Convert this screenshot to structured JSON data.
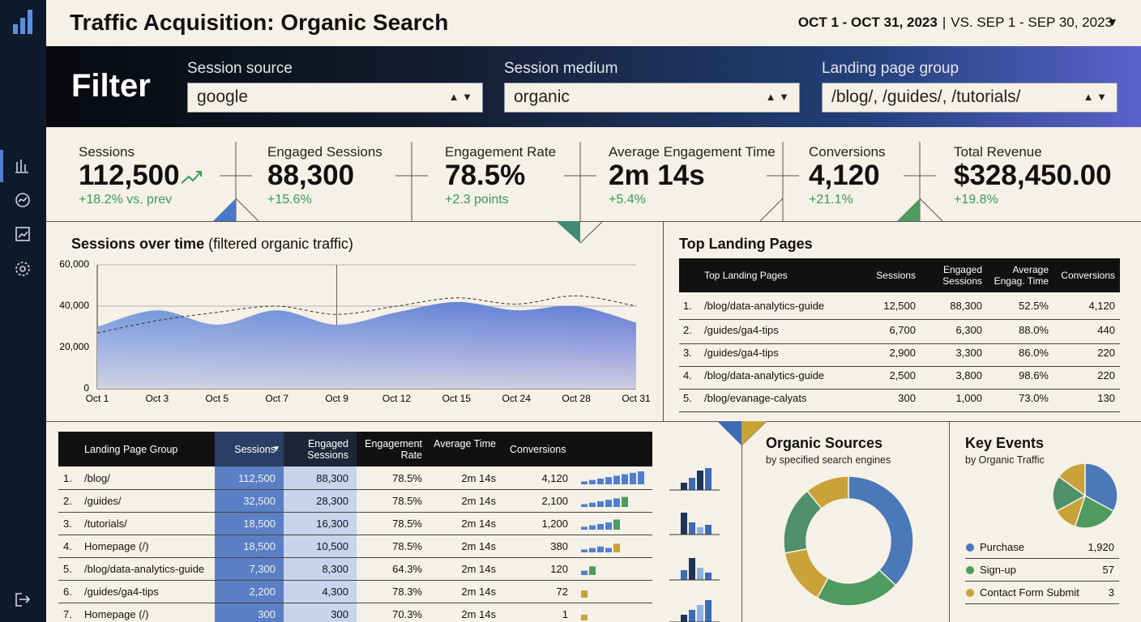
{
  "header": {
    "title": "Traffic Acquisition: Organic Search",
    "date_range": "OCT 1 - OCT 31, 2023",
    "compare_range": "VS. SEP 1 - SEP 30, 2023"
  },
  "filter": {
    "title": "Filter",
    "fields": [
      {
        "label": "Session source",
        "value": "google"
      },
      {
        "label": "Session medium",
        "value": "organic"
      },
      {
        "label": "Landing page group",
        "value": "/blog/, /guides/, /tutorials/"
      }
    ]
  },
  "kpis": [
    {
      "label": "Sessions",
      "value": "112,500",
      "change": "+18.2% vs. prev"
    },
    {
      "label": "Engaged Sessions",
      "value": "88,300",
      "change": "+15.6%"
    },
    {
      "label": "Engagement Rate",
      "value": "78.5%",
      "change": "+2.3 points"
    },
    {
      "label": "Average Engagement Time",
      "value": "2m 14s",
      "change": "+5.4%"
    },
    {
      "label": "Conversions",
      "value": "4,120",
      "change": "+21.1%"
    },
    {
      "label": "Total Revenue",
      "value": "$328,450.00",
      "change": "+19.8%"
    }
  ],
  "sessions_chart": {
    "type": "area",
    "title": "Sessions over time",
    "subtitle": "(filtered organic traffic)",
    "categories": [
      "Oct 1",
      "Oct 3",
      "Oct 5",
      "Oct 7",
      "Oct 9",
      "Oct 12",
      "Oct 15",
      "Oct 24",
      "Oct 28",
      "Oct 31"
    ],
    "series": [
      {
        "color": "#4f7fd0",
        "style": "area",
        "values": [
          30000,
          38000,
          31000,
          38000,
          31000,
          37000,
          42000,
          38000,
          40000,
          32000
        ]
      },
      {
        "color": "#333333",
        "style": "dashed",
        "values": [
          27000,
          33000,
          37000,
          40000,
          36000,
          40000,
          44000,
          41000,
          45000,
          40000
        ]
      }
    ],
    "ylim": [
      0,
      60000
    ],
    "yticks": [
      0,
      {
        "value": 20000,
        "label": "20,000"
      },
      {
        "value": 40000,
        "label": "40,000"
      },
      {
        "value": 60000,
        "label": "60,000"
      }
    ],
    "grid": true
  },
  "top_landing_pages": {
    "title": "Top Landing Pages",
    "columns": [
      "Top Landing Pages",
      "Sessions",
      "Engaged Sessions",
      "Average Engag. Time",
      "Conversions"
    ],
    "rows": [
      [
        "1.",
        "/blog/data-analytics-guide",
        "12,500",
        "88,300",
        "52.5%",
        "4,120"
      ],
      [
        "2.",
        "/guides/ga4-tips",
        "6,700",
        "6,300",
        "88.0%",
        "440"
      ],
      [
        "3.",
        "/guides/ga4-tips",
        "2,900",
        "3,300",
        "86.0%",
        "220"
      ],
      [
        "4.",
        "/blog/data-analytics-guide",
        "2,500",
        "3,800",
        "98.6%",
        "220"
      ],
      [
        "5.",
        "/blog/evanage-calyats",
        "300",
        "1,000",
        "73.0%",
        "130"
      ]
    ]
  },
  "landing_group_table": {
    "columns": [
      "Landing Page Group",
      "Sessions",
      "Engaged Sessions",
      "Engagement Rate",
      "Average Time",
      "Conversions"
    ],
    "rows": [
      {
        "cells": [
          "1.",
          "/blog/",
          "112,500",
          "88,300",
          "78.5%",
          "2m 14s",
          "4,120"
        ],
        "trend": [
          2,
          3,
          4,
          5,
          6,
          7,
          8,
          9
        ],
        "trend_color": "#4f7fd0"
      },
      {
        "cells": [
          "2.",
          "/guides/",
          "32,500",
          "28,300",
          "78.5%",
          "2m 14s",
          "2,100"
        ],
        "trend": [
          2,
          3,
          4,
          5,
          6,
          7
        ],
        "trend_color": "#4f9a5e"
      },
      {
        "cells": [
          "3.",
          "/tutorials/",
          "18,500",
          "16,300",
          "78.5%",
          "2m 14s",
          "1,200"
        ],
        "trend": [
          2,
          3,
          4,
          5,
          7
        ],
        "trend_color": "#4f9a5e"
      },
      {
        "cells": [
          "4.",
          "Homepage (/)",
          "18,500",
          "10,500",
          "78.5%",
          "2m 14s",
          "380"
        ],
        "trend": [
          2,
          3,
          4,
          3,
          6
        ],
        "trend_color": "#c9a238"
      },
      {
        "cells": [
          "5.",
          "/blog/data-analytics-guide",
          "7,300",
          "8,300",
          "64.3%",
          "2m 14s",
          "120"
        ],
        "trend": [
          3,
          6
        ],
        "trend_color": "#4f9a5e"
      },
      {
        "cells": [
          "6.",
          "/guides/ga4-tips",
          "2,200",
          "4,300",
          "78.3%",
          "2m 14s",
          "72"
        ],
        "trend": [
          5
        ],
        "trend_color": "#c9a238"
      },
      {
        "cells": [
          "7.",
          "Homepage (/)",
          "300",
          "300",
          "70.3%",
          "2m 14s",
          "1"
        ],
        "trend": [
          4
        ],
        "trend_color": "#c9a238"
      }
    ]
  },
  "mini_bars": [
    {
      "values": [
        3,
        5,
        8,
        9
      ],
      "colors": [
        "#1d3557",
        "#3d6bb3",
        "#1d3557",
        "#3d6bb3"
      ]
    },
    {
      "values": [
        9,
        5,
        3,
        4
      ],
      "colors": [
        "#1d3557",
        "#3d6bb3",
        "#8fb0e0",
        "#3d6bb3"
      ]
    },
    {
      "values": [
        4,
        9,
        5,
        3
      ],
      "colors": [
        "#3d6bb3",
        "#1d3557",
        "#8fb0e0",
        "#3d6bb3"
      ]
    },
    {
      "values": [
        3,
        5,
        7,
        9
      ],
      "colors": [
        "#1d3557",
        "#3d6bb3",
        "#8fb0e0",
        "#3d6bb3"
      ]
    }
  ],
  "organic_sources": {
    "title": "Organic Sources",
    "subtitle": "by specified search engines",
    "values": [
      37,
      21,
      14,
      17,
      11
    ],
    "colors": [
      "#4a78b8",
      "#4f9a5e",
      "#c9a238",
      "#4f8f6a",
      "#c9a238"
    ]
  },
  "key_events": {
    "title": "Key Events",
    "subtitle": "by Organic Traffic",
    "values": [
      33,
      22,
      12,
      18,
      15
    ],
    "colors": [
      "#4a78b8",
      "#4f9a5e",
      "#c9a238",
      "#4f8f6a",
      "#c9a238"
    ],
    "items": [
      {
        "name": "Purchase",
        "value": "1,920",
        "color": "#4a78b8"
      },
      {
        "name": "Sign-up",
        "value": "57",
        "color": "#4f9a5e"
      },
      {
        "name": "Contact Form Submit",
        "value": "3",
        "color": "#c9a238"
      }
    ]
  }
}
